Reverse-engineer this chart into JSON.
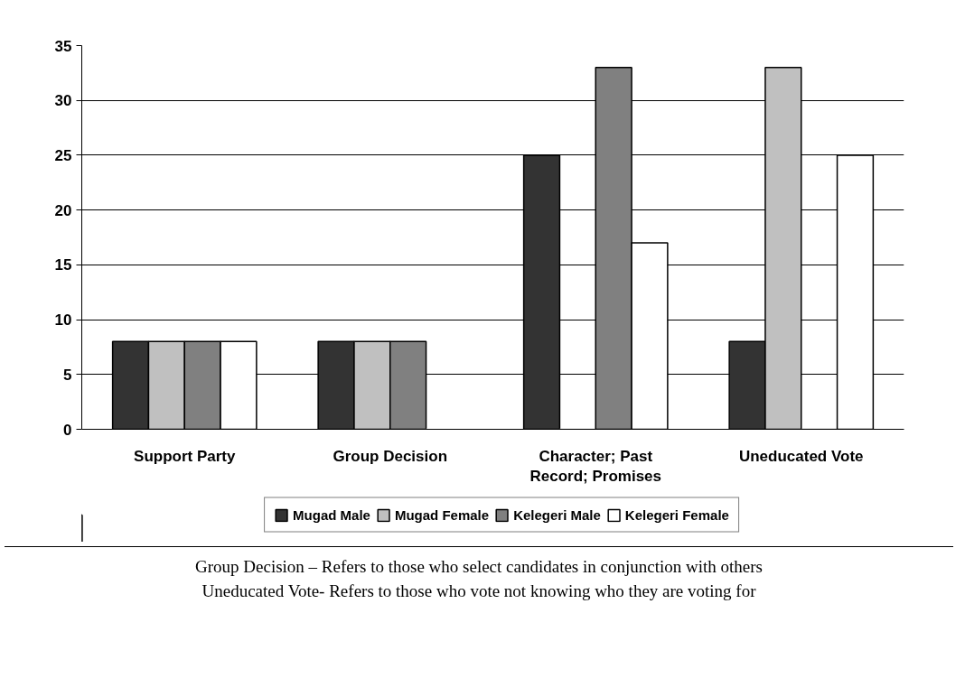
{
  "chart_data": {
    "type": "bar",
    "categories": [
      "Support Party",
      "Group Decision",
      "Character; Past Record; Promises",
      "Uneducated Vote"
    ],
    "series": [
      {
        "name": "Mugad Male",
        "color": "#333333",
        "values": [
          8,
          8,
          25,
          8
        ]
      },
      {
        "name": "Mugad Female",
        "color": "#c0c0c0",
        "values": [
          8,
          8,
          0,
          33
        ]
      },
      {
        "name": "Kelegeri Male",
        "color": "#808080",
        "values": [
          8,
          8,
          33,
          0
        ]
      },
      {
        "name": "Kelegeri Female",
        "color": "#ffffff",
        "values": [
          8,
          0,
          17,
          25
        ]
      }
    ],
    "ylim": [
      0,
      35
    ],
    "yticks": [
      0,
      5,
      10,
      15,
      20,
      25,
      30,
      35
    ],
    "grid": "y",
    "legend": "bottom",
    "annotations": [
      "Group Decision – Refers to those who select candidates in conjunction with others",
      "Uneducated Vote- Refers to those who vote not knowing who they are voting for"
    ]
  }
}
